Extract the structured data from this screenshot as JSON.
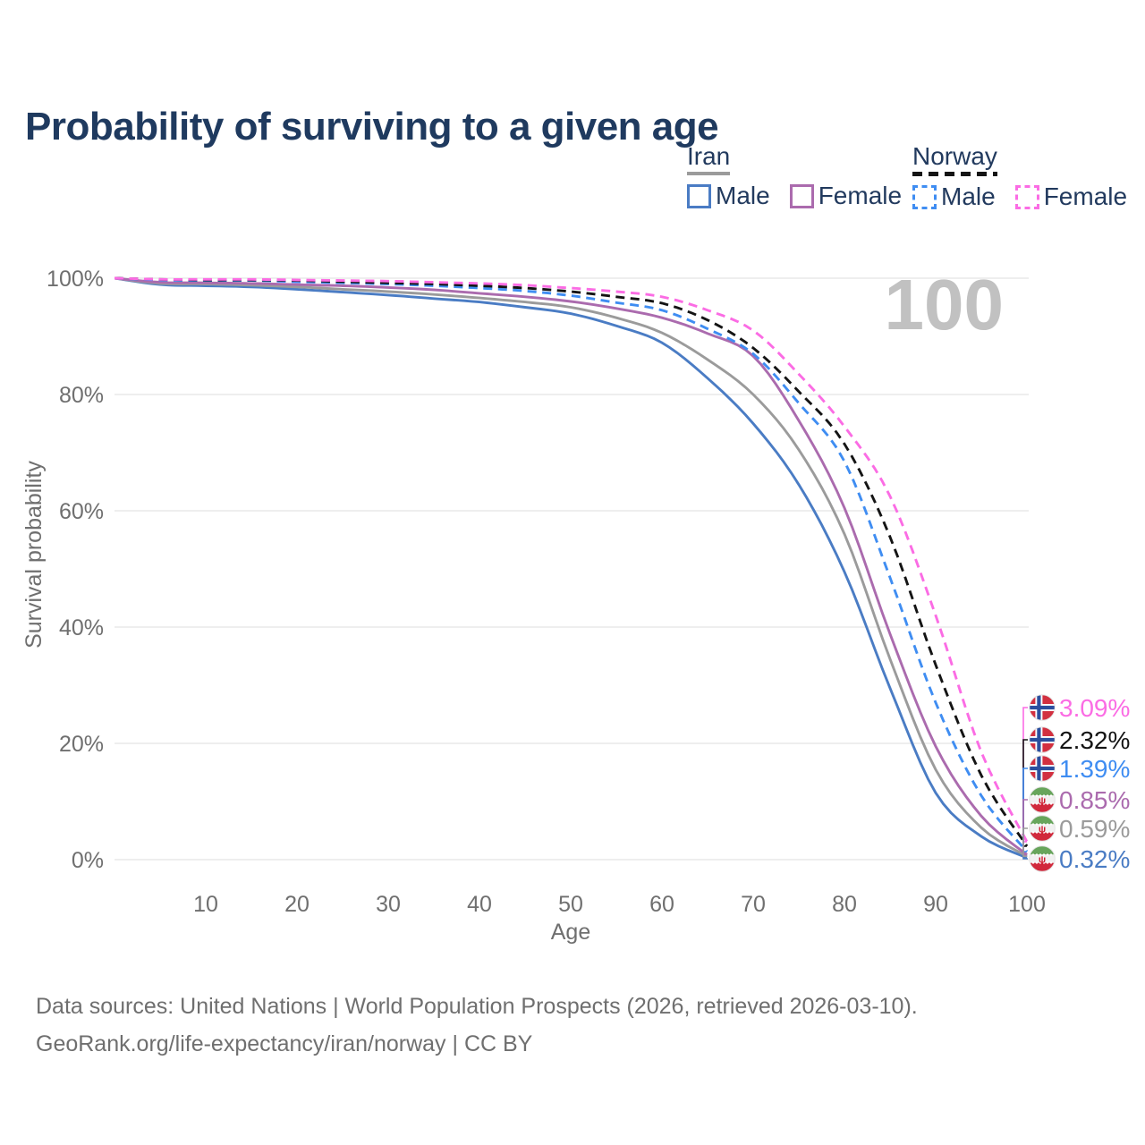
{
  "title": "Probability of surviving to a given age",
  "age_counter": "100",
  "legend": {
    "groups": [
      {
        "name": "Iran",
        "line_style": "solid",
        "line_color": "#9b9b9b",
        "items": [
          {
            "label": "Male",
            "color": "#4a7cc4",
            "dashed": false
          },
          {
            "label": "Female",
            "color": "#ab6bae",
            "dashed": false
          }
        ]
      },
      {
        "name": "Norway",
        "line_style": "dashed",
        "line_color": "#141414",
        "items": [
          {
            "label": "Male",
            "color": "#3f8df2",
            "dashed": true
          },
          {
            "label": "Female",
            "color": "#fb6ce4",
            "dashed": true
          }
        ]
      }
    ]
  },
  "chart_data": {
    "type": "line",
    "title": "Probability of surviving to a given age",
    "xlabel": "Age",
    "ylabel": "Survival probability",
    "xlim": [
      0,
      100
    ],
    "ylim": [
      0,
      100
    ],
    "xticks": [
      10,
      20,
      30,
      40,
      50,
      60,
      70,
      80,
      90,
      100
    ],
    "yticks": [
      0,
      20,
      40,
      60,
      80,
      100
    ],
    "ytick_suffix": "%",
    "grid": "horizontal",
    "legend_position": "top-right",
    "ages": [
      0,
      5,
      10,
      15,
      20,
      25,
      30,
      35,
      40,
      45,
      50,
      55,
      60,
      65,
      70,
      75,
      80,
      85,
      90,
      95,
      100
    ],
    "series": [
      {
        "name": "Norway Female",
        "country": "Norway",
        "sex": "Female",
        "color": "#fb6ce4",
        "dashed": true,
        "end_label": "3.09%",
        "end_value": 3.09,
        "flag": "norway-flag-icon",
        "values": [
          100,
          99.8,
          99.8,
          99.8,
          99.7,
          99.6,
          99.5,
          99.3,
          99.1,
          98.8,
          98.3,
          97.7,
          96.8,
          94.5,
          91.0,
          83.5,
          74.5,
          62.5,
          42.0,
          18.5,
          3.09
        ]
      },
      {
        "name": "Norway",
        "country": "Norway",
        "sex": "Both sexes",
        "color": "#141414",
        "dashed": true,
        "end_label": "2.32%",
        "end_value": 2.32,
        "flag": "norway-flag-icon",
        "values": [
          100,
          99.8,
          99.7,
          99.7,
          99.6,
          99.4,
          99.2,
          99.0,
          98.7,
          98.3,
          97.7,
          96.8,
          95.7,
          92.8,
          88.0,
          80.5,
          71.5,
          55.5,
          33.5,
          14.5,
          2.32
        ]
      },
      {
        "name": "Norway Male",
        "country": "Norway",
        "sex": "Male",
        "color": "#3f8df2",
        "dashed": true,
        "end_label": "1.39%",
        "end_value": 1.39,
        "flag": "norway-flag-icon",
        "values": [
          100,
          99.7,
          99.6,
          99.6,
          99.4,
          99.2,
          99.0,
          98.7,
          98.3,
          97.8,
          97.0,
          95.8,
          94.5,
          91.3,
          87.0,
          78.5,
          68.5,
          48.5,
          27.0,
          11.0,
          1.39
        ]
      },
      {
        "name": "Iran Female",
        "country": "Iran",
        "sex": "Female",
        "color": "#ab6bae",
        "dashed": false,
        "end_label": "0.85%",
        "end_value": 0.85,
        "flag": "iran-flag-icon",
        "values": [
          100,
          99.3,
          99.2,
          99.1,
          98.9,
          98.7,
          98.4,
          98.0,
          97.4,
          96.8,
          96.0,
          94.8,
          93.2,
          90.5,
          86.6,
          75.5,
          60.5,
          38.8,
          19.5,
          7.5,
          0.85
        ]
      },
      {
        "name": "Iran",
        "country": "Iran",
        "sex": "Both sexes",
        "color": "#9b9b9b",
        "dashed": false,
        "end_label": "0.59%",
        "end_value": 0.59,
        "flag": "iran-flag-icon",
        "values": [
          100,
          99.1,
          99.0,
          98.8,
          98.5,
          98.1,
          97.7,
          97.2,
          96.6,
          95.9,
          95.0,
          93.2,
          90.6,
          86.0,
          80.0,
          70.5,
          56.0,
          34.5,
          15.5,
          5.5,
          0.59
        ]
      },
      {
        "name": "Iran Male",
        "country": "Iran",
        "sex": "Male",
        "color": "#4a7cc4",
        "dashed": false,
        "end_label": "0.32%",
        "end_value": 0.32,
        "flag": "iran-flag-icon",
        "values": [
          100,
          98.9,
          98.7,
          98.5,
          98.1,
          97.6,
          97.1,
          96.5,
          95.9,
          95.0,
          93.9,
          91.8,
          88.9,
          82.8,
          75.0,
          64.5,
          49.5,
          29.5,
          11.5,
          4.0,
          0.32
        ]
      }
    ]
  },
  "footer": {
    "line1": "Data sources: United Nations | World Population Prospects (2026, retrieved 2026-03-10).",
    "line2": "GeoRank.org/life-expectancy/iran/norway | CC BY"
  }
}
